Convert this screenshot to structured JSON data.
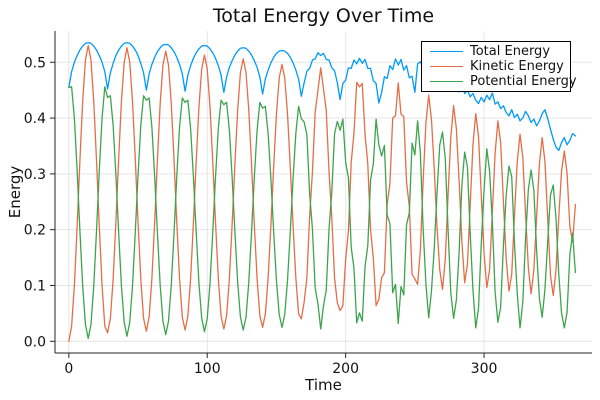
{
  "chart_data": {
    "type": "line",
    "title": "Total Energy Over Time",
    "xlabel": "Time",
    "ylabel": "Energy",
    "xlim": [
      -10,
      378
    ],
    "ylim": [
      -0.021,
      0.556
    ],
    "xticks": {
      "values": [
        0,
        100,
        200,
        300
      ],
      "labels": [
        "0",
        "100",
        "200",
        "300"
      ]
    },
    "yticks": {
      "values": [
        0.0,
        0.1,
        0.2,
        0.3,
        0.4,
        0.5
      ],
      "labels": [
        "0.0",
        "0.1",
        "0.2",
        "0.3",
        "0.4",
        "0.5"
      ]
    },
    "grid": true,
    "grid_color": "#e6e6e6",
    "axis_color": "#26262a",
    "legend": {
      "position": "top-right",
      "border_color": "#000000",
      "background": "#ffffff"
    },
    "x": {
      "start": 0,
      "step": 2,
      "count": 184
    },
    "series": [
      {
        "name": "Total Energy",
        "color": "#009AFA",
        "values": [
          0.455,
          0.483,
          0.5,
          0.512,
          0.522,
          0.529,
          0.534,
          0.535,
          0.534,
          0.529,
          0.522,
          0.512,
          0.5,
          0.483,
          0.452,
          0.481,
          0.498,
          0.512,
          0.522,
          0.529,
          0.534,
          0.535,
          0.534,
          0.529,
          0.522,
          0.512,
          0.498,
          0.481,
          0.45,
          0.479,
          0.496,
          0.509,
          0.519,
          0.526,
          0.531,
          0.532,
          0.531,
          0.526,
          0.519,
          0.509,
          0.496,
          0.479,
          0.448,
          0.477,
          0.494,
          0.507,
          0.517,
          0.524,
          0.529,
          0.53,
          0.529,
          0.524,
          0.517,
          0.507,
          0.494,
          0.477,
          0.446,
          0.474,
          0.491,
          0.503,
          0.513,
          0.52,
          0.525,
          0.526,
          0.525,
          0.52,
          0.513,
          0.503,
          0.491,
          0.474,
          0.443,
          0.47,
          0.486,
          0.499,
          0.509,
          0.516,
          0.52,
          0.521,
          0.52,
          0.516,
          0.509,
          0.499,
          0.486,
          0.47,
          0.439,
          0.463,
          0.484,
          0.489,
          0.504,
          0.506,
          0.517,
          0.512,
          0.516,
          0.505,
          0.504,
          0.49,
          0.485,
          0.463,
          0.433,
          0.462,
          0.468,
          0.49,
          0.489,
          0.504,
          0.497,
          0.507,
          0.498,
          0.505,
          0.489,
          0.489,
          0.467,
          0.462,
          0.427,
          0.446,
          0.474,
          0.471,
          0.494,
          0.487,
          0.506,
          0.495,
          0.505,
          0.486,
          0.494,
          0.472,
          0.475,
          0.446,
          0.497,
          0.501,
          0.489,
          0.494,
          0.483,
          0.488,
          0.476,
          0.47,
          0.48,
          0.468,
          0.474,
          0.462,
          0.452,
          0.463,
          0.455,
          0.447,
          0.458,
          0.444,
          0.45,
          0.438,
          0.444,
          0.432,
          0.426,
          0.437,
          0.429,
          0.441,
          0.433,
          0.445,
          0.425,
          0.429,
          0.417,
          0.422,
          0.41,
          0.404,
          0.415,
          0.401,
          0.407,
          0.395,
          0.4,
          0.412,
          0.404,
          0.392,
          0.398,
          0.386,
          0.395,
          0.408,
          0.415,
          0.399,
          0.38,
          0.362,
          0.348,
          0.342,
          0.356,
          0.365,
          0.352,
          0.36,
          0.372,
          0.368
        ]
      },
      {
        "name": "Kinetic Energy",
        "color": "#E36E47",
        "values": [
          0.0,
          0.027,
          0.1,
          0.206,
          0.324,
          0.43,
          0.504,
          0.53,
          0.504,
          0.43,
          0.324,
          0.206,
          0.1,
          0.027,
          0.015,
          0.041,
          0.111,
          0.214,
          0.327,
          0.43,
          0.5,
          0.526,
          0.5,
          0.43,
          0.327,
          0.214,
          0.111,
          0.041,
          0.018,
          0.043,
          0.112,
          0.213,
          0.325,
          0.426,
          0.495,
          0.52,
          0.495,
          0.426,
          0.325,
          0.213,
          0.112,
          0.043,
          0.02,
          0.045,
          0.113,
          0.212,
          0.321,
          0.42,
          0.488,
          0.513,
          0.488,
          0.42,
          0.321,
          0.212,
          0.113,
          0.045,
          0.022,
          0.046,
          0.113,
          0.21,
          0.318,
          0.415,
          0.482,
          0.506,
          0.482,
          0.415,
          0.318,
          0.21,
          0.113,
          0.046,
          0.025,
          0.049,
          0.114,
          0.208,
          0.313,
          0.407,
          0.472,
          0.496,
          0.472,
          0.407,
          0.313,
          0.208,
          0.114,
          0.049,
          0.04,
          0.07,
          0.114,
          0.225,
          0.303,
          0.411,
          0.45,
          0.49,
          0.452,
          0.413,
          0.303,
          0.222,
          0.113,
          0.069,
          0.055,
          0.064,
          0.147,
          0.197,
          0.32,
          0.373,
          0.464,
          0.456,
          0.462,
          0.371,
          0.318,
          0.2,
          0.149,
          0.064,
          0.075,
          0.114,
          0.123,
          0.245,
          0.283,
          0.4,
          0.404,
          0.463,
          0.407,
          0.403,
          0.285,
          0.242,
          0.12,
          0.112,
          0.102,
          0.164,
          0.288,
          0.391,
          0.441,
          0.398,
          0.31,
          0.205,
          0.128,
          0.093,
          0.147,
          0.262,
          0.366,
          0.422,
          0.381,
          0.287,
          0.178,
          0.105,
          0.138,
          0.245,
          0.352,
          0.408,
          0.367,
          0.262,
          0.158,
          0.096,
          0.128,
          0.232,
          0.337,
          0.395,
          0.356,
          0.25,
          0.148,
          0.09,
          0.12,
          0.226,
          0.322,
          0.371,
          0.33,
          0.228,
          0.132,
          0.085,
          0.128,
          0.224,
          0.318,
          0.365,
          0.322,
          0.22,
          0.118,
          0.082,
          0.128,
          0.222,
          0.305,
          0.341,
          0.3,
          0.205,
          0.178,
          0.245
        ]
      },
      {
        "name": "Potential Energy",
        "color": "#3DA44D",
        "values": [
          0.455,
          0.456,
          0.4,
          0.306,
          0.198,
          0.099,
          0.03,
          0.005,
          0.03,
          0.099,
          0.198,
          0.306,
          0.4,
          0.456,
          0.437,
          0.44,
          0.387,
          0.298,
          0.195,
          0.099,
          0.034,
          0.009,
          0.034,
          0.099,
          0.195,
          0.298,
          0.387,
          0.44,
          0.432,
          0.436,
          0.384,
          0.296,
          0.194,
          0.1,
          0.036,
          0.012,
          0.036,
          0.1,
          0.194,
          0.296,
          0.384,
          0.436,
          0.428,
          0.432,
          0.381,
          0.295,
          0.196,
          0.104,
          0.041,
          0.017,
          0.041,
          0.104,
          0.196,
          0.295,
          0.381,
          0.432,
          0.424,
          0.428,
          0.378,
          0.293,
          0.195,
          0.105,
          0.043,
          0.02,
          0.043,
          0.105,
          0.195,
          0.293,
          0.378,
          0.428,
          0.418,
          0.421,
          0.372,
          0.291,
          0.196,
          0.109,
          0.048,
          0.025,
          0.048,
          0.109,
          0.196,
          0.291,
          0.372,
          0.421,
          0.399,
          0.393,
          0.37,
          0.264,
          0.201,
          0.095,
          0.067,
          0.022,
          0.064,
          0.092,
          0.201,
          0.268,
          0.372,
          0.394,
          0.378,
          0.398,
          0.321,
          0.293,
          0.169,
          0.131,
          0.033,
          0.051,
          0.036,
          0.134,
          0.171,
          0.289,
          0.318,
          0.398,
          0.352,
          0.332,
          0.351,
          0.226,
          0.211,
          0.087,
          0.102,
          0.032,
          0.098,
          0.083,
          0.209,
          0.23,
          0.355,
          0.334,
          0.395,
          0.337,
          0.201,
          0.103,
          0.042,
          0.09,
          0.166,
          0.265,
          0.352,
          0.375,
          0.327,
          0.2,
          0.086,
          0.041,
          0.074,
          0.16,
          0.28,
          0.339,
          0.312,
          0.193,
          0.092,
          0.024,
          0.059,
          0.175,
          0.271,
          0.345,
          0.305,
          0.213,
          0.088,
          0.034,
          0.061,
          0.172,
          0.262,
          0.314,
          0.295,
          0.175,
          0.085,
          0.024,
          0.07,
          0.184,
          0.272,
          0.307,
          0.27,
          0.162,
          0.077,
          0.043,
          0.093,
          0.179,
          0.262,
          0.28,
          0.22,
          0.12,
          0.051,
          0.024,
          0.052,
          0.155,
          0.194,
          0.123
        ]
      }
    ]
  }
}
